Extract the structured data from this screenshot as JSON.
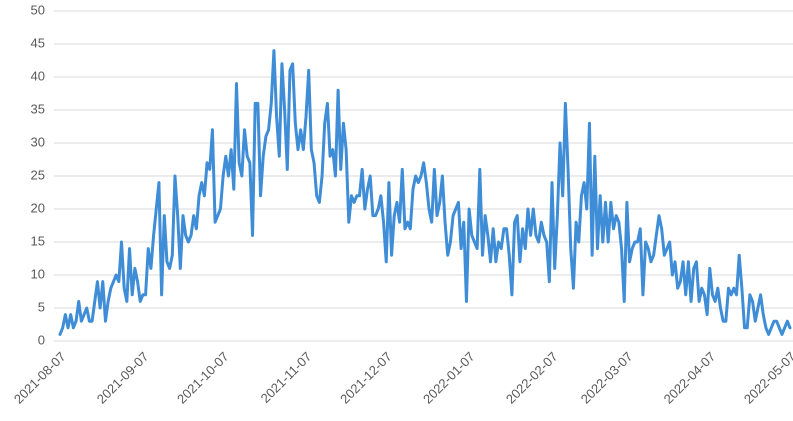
{
  "chart_data": {
    "type": "line",
    "categories": [
      "2021-08-07",
      null,
      null,
      null,
      null,
      null,
      null,
      null,
      null,
      null,
      null,
      null,
      null,
      null,
      null,
      null,
      null,
      null,
      null,
      null,
      null,
      null,
      null,
      null,
      null,
      null,
      null,
      null,
      null,
      null,
      null,
      "2021-09-07",
      null,
      null,
      null,
      null,
      null,
      null,
      null,
      null,
      null,
      null,
      null,
      null,
      null,
      null,
      null,
      null,
      null,
      null,
      null,
      null,
      null,
      null,
      null,
      null,
      null,
      null,
      null,
      null,
      null,
      "2021-10-07",
      null,
      null,
      null,
      null,
      null,
      null,
      null,
      null,
      null,
      null,
      null,
      null,
      null,
      null,
      null,
      null,
      null,
      null,
      null,
      null,
      null,
      null,
      null,
      null,
      null,
      null,
      null,
      null,
      null,
      null,
      "2021-11-07",
      null,
      null,
      null,
      null,
      null,
      null,
      null,
      null,
      null,
      null,
      null,
      null,
      null,
      null,
      null,
      null,
      null,
      null,
      null,
      null,
      null,
      null,
      null,
      null,
      null,
      null,
      null,
      null,
      null,
      "2021-12-07",
      null,
      null,
      null,
      null,
      null,
      null,
      null,
      null,
      null,
      null,
      null,
      null,
      null,
      null,
      null,
      null,
      null,
      null,
      null,
      null,
      null,
      null,
      null,
      null,
      null,
      null,
      null,
      null,
      null,
      null,
      "2022-01-07",
      null,
      null,
      null,
      null,
      null,
      null,
      null,
      null,
      null,
      null,
      null,
      null,
      null,
      null,
      null,
      null,
      null,
      null,
      null,
      null,
      null,
      null,
      null,
      null,
      null,
      null,
      null,
      null,
      null,
      null,
      "2022-02-07",
      null,
      null,
      null,
      null,
      null,
      null,
      null,
      null,
      null,
      null,
      null,
      null,
      null,
      null,
      null,
      null,
      null,
      null,
      null,
      null,
      null,
      null,
      null,
      null,
      null,
      null,
      null,
      "2022-03-07",
      null,
      null,
      null,
      null,
      null,
      null,
      null,
      null,
      null,
      null,
      null,
      null,
      null,
      null,
      null,
      null,
      null,
      null,
      null,
      null,
      null,
      null,
      null,
      null,
      null,
      null,
      null,
      null,
      null,
      null,
      "2022-04-07",
      null,
      null,
      null,
      null,
      null,
      null,
      null,
      null,
      null,
      null,
      null,
      null,
      null,
      null,
      null,
      null,
      null,
      null,
      null,
      null,
      null,
      null,
      null,
      null,
      null,
      null,
      null,
      null,
      null,
      "2022-05-07"
    ],
    "values": [
      1,
      2,
      4,
      2,
      4,
      2,
      3,
      6,
      3,
      4,
      5,
      3,
      3,
      6,
      9,
      5,
      9,
      3,
      6,
      8,
      9,
      10,
      9,
      15,
      8,
      6,
      14,
      7,
      11,
      9,
      6,
      7,
      7,
      14,
      11,
      16,
      20,
      24,
      7,
      19,
      12,
      11,
      13,
      25,
      19,
      11,
      19,
      16,
      15,
      16,
      19,
      17,
      22,
      24,
      22,
      27,
      26,
      32,
      18,
      19,
      20,
      25,
      28,
      25,
      29,
      23,
      39,
      27,
      25,
      32,
      28,
      27,
      16,
      36,
      36,
      22,
      28,
      31,
      32,
      36,
      44,
      34,
      28,
      42,
      35,
      26,
      41,
      42,
      33,
      29,
      32,
      29,
      34,
      41,
      29,
      27,
      22,
      21,
      25,
      33,
      36,
      28,
      29,
      25,
      38,
      26,
      33,
      29,
      18,
      22,
      21,
      22,
      22,
      26,
      20,
      23,
      25,
      19,
      19,
      20,
      22,
      18,
      12,
      24,
      13,
      19,
      21,
      18,
      26,
      17,
      18,
      17,
      23,
      25,
      24,
      25,
      27,
      24,
      20,
      18,
      26,
      19,
      21,
      25,
      18,
      13,
      15,
      19,
      20,
      21,
      14,
      18,
      6,
      20,
      16,
      15,
      14,
      26,
      13,
      19,
      16,
      12,
      17,
      12,
      15,
      14,
      17,
      17,
      13,
      7,
      18,
      19,
      12,
      17,
      14,
      20,
      16,
      20,
      16,
      15,
      18,
      16,
      15,
      9,
      24,
      11,
      19,
      30,
      22,
      36,
      26,
      14,
      8,
      18,
      15,
      22,
      24,
      20,
      33,
      13,
      28,
      14,
      22,
      15,
      21,
      15,
      21,
      17,
      19,
      18,
      14,
      6,
      21,
      12,
      14,
      15,
      15,
      17,
      7,
      15,
      14,
      12,
      13,
      16,
      19,
      17,
      13,
      14,
      15,
      10,
      12,
      8,
      9,
      12,
      7,
      12,
      6,
      11,
      12,
      6,
      8,
      7,
      4,
      11,
      7,
      6,
      8,
      5,
      3,
      3,
      8,
      7,
      8,
      7,
      13,
      8,
      2,
      2,
      7,
      6,
      3,
      5,
      7,
      4,
      2,
      1,
      2,
      3,
      3,
      2,
      1,
      2,
      3,
      2
    ],
    "color": "#3f8dd6",
    "ylim": [
      0,
      50
    ],
    "yticks": [
      0,
      5,
      10,
      15,
      20,
      25,
      30,
      35,
      40,
      45,
      50
    ],
    "grid": true
  }
}
